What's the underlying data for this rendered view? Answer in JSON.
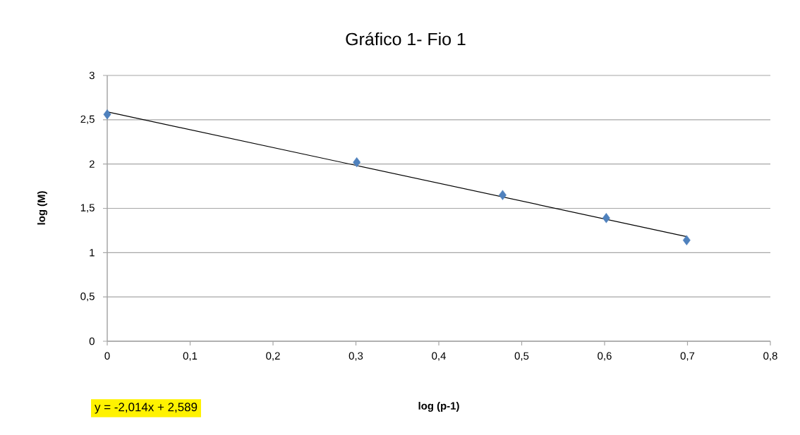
{
  "chart_data": {
    "type": "scatter",
    "title": "Gráfico 1-  Fio 1",
    "xlabel": "log (p-1)",
    "ylabel": "log (M)",
    "annotations": [
      "y = -2,014x + 2,589"
    ],
    "series": [
      {
        "color": "#4f81bd",
        "marker": "diamond",
        "x": [
          0,
          0.301,
          0.477,
          0.602,
          0.699
        ],
        "values": [
          2.56,
          2.02,
          1.65,
          1.39,
          1.14
        ]
      },
      {
        "type": "line",
        "color": "#000000",
        "marker": "none",
        "line_style": "solid",
        "x": [
          0,
          0.699
        ],
        "values": [
          2.589,
          1.181
        ]
      }
    ],
    "xlim": [
      0,
      0.8
    ],
    "ylim": [
      0,
      3
    ],
    "xticks": [
      0,
      {
        "value": 0.1,
        "label": "0,1"
      },
      {
        "value": 0.2,
        "label": "0,2"
      },
      {
        "value": 0.3,
        "label": "0,3"
      },
      {
        "value": 0.4,
        "label": "0,4"
      },
      {
        "value": 0.5,
        "label": "0,5"
      },
      {
        "value": 0.6,
        "label": "0,6"
      },
      {
        "value": 0.7,
        "label": "0,7"
      },
      {
        "value": 0.8,
        "label": "0,8"
      }
    ],
    "yticks": [
      0,
      {
        "value": 0.5,
        "label": "0,5"
      },
      1,
      {
        "value": 1.5,
        "label": "1,5"
      },
      2,
      {
        "value": 2.5,
        "label": "2,5"
      },
      3
    ],
    "grid": "y"
  }
}
